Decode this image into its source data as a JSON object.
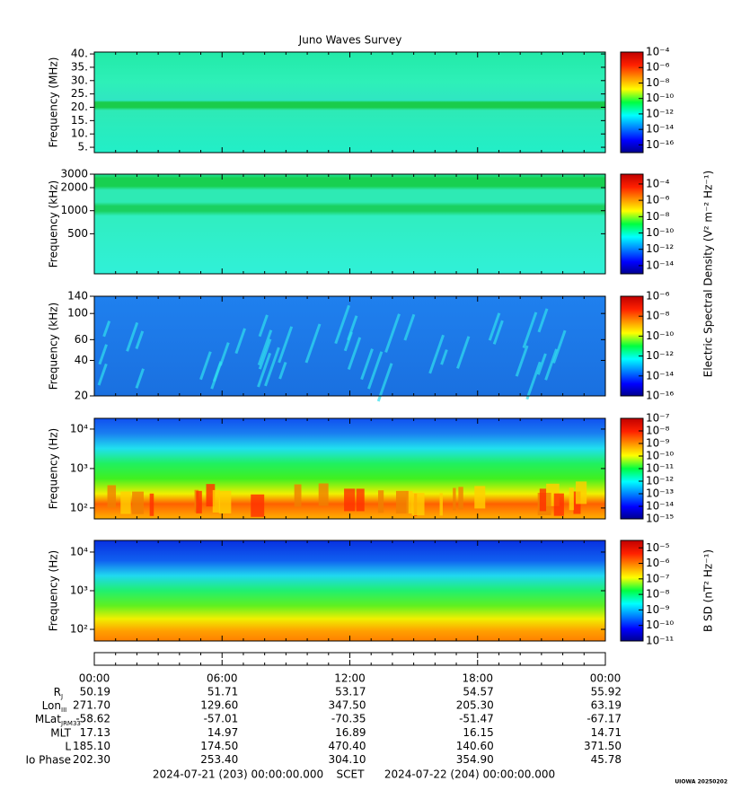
{
  "title": "Juno Waves Survey",
  "chart_data": [
    {
      "type": "spectrogram",
      "ylabel": "Frequency (MHz)",
      "log_y": false,
      "ylim": [
        3,
        40.7
      ],
      "yticks": [
        {
          "value": 5,
          "label": "5."
        },
        {
          "value": 10,
          "label": "10."
        },
        {
          "value": 15,
          "label": "15."
        },
        {
          "value": 20,
          "label": "20."
        },
        {
          "value": 25,
          "label": "25."
        },
        {
          "value": 30,
          "label": "30."
        },
        {
          "value": 35,
          "label": "35."
        },
        {
          "value": 40,
          "label": "40."
        }
      ],
      "colorbar": {
        "log": true,
        "clim": [
          1e-17,
          0.0001
        ],
        "ticks": [
          {
            "value": 0.0001,
            "label": "10⁻⁴"
          },
          {
            "value": 1e-06,
            "label": "10⁻⁶"
          },
          {
            "value": 1e-08,
            "label": "10⁻⁸"
          },
          {
            "value": 1e-10,
            "label": "10⁻¹⁰"
          },
          {
            "value": 1e-12,
            "label": "10⁻¹²"
          },
          {
            "value": 1e-14,
            "label": "10⁻¹⁴"
          },
          {
            "value": 1e-16,
            "label": "10⁻¹⁶"
          }
        ]
      }
    },
    {
      "type": "spectrogram",
      "ylabel": "Frequency (kHz)",
      "log_y": true,
      "ylim": [
        150,
        3000
      ],
      "yticks": [
        500,
        1000,
        2000,
        3000
      ],
      "colorbar": {
        "log": true,
        "clim": [
          1e-15,
          0.0016
        ],
        "label": "Electric Spectral Density (V² m⁻² Hz⁻¹)",
        "ticks": [
          {
            "value": 0.0001,
            "label": "10⁻⁴"
          },
          {
            "value": 1e-06,
            "label": "10⁻⁶"
          },
          {
            "value": 1e-08,
            "label": "10⁻⁸"
          },
          {
            "value": 1e-10,
            "label": "10⁻¹⁰"
          },
          {
            "value": 1e-12,
            "label": "10⁻¹²"
          },
          {
            "value": 1e-14,
            "label": "10⁻¹⁴"
          }
        ]
      }
    },
    {
      "type": "spectrogram",
      "ylabel": "Frequency (kHz)",
      "log_y": true,
      "ylim": [
        20,
        140
      ],
      "yticks": [
        20,
        40,
        60,
        100,
        140
      ],
      "colorbar": {
        "log": true,
        "clim": [
          1e-16,
          1e-06
        ],
        "ticks": [
          {
            "value": 1e-06,
            "label": "10⁻⁶"
          },
          {
            "value": 1e-08,
            "label": "10⁻⁸"
          },
          {
            "value": 1e-10,
            "label": "10⁻¹⁰"
          },
          {
            "value": 1e-12,
            "label": "10⁻¹²"
          },
          {
            "value": 1e-14,
            "label": "10⁻¹⁴"
          },
          {
            "value": 1e-16,
            "label": "10⁻¹⁶"
          }
        ]
      }
    },
    {
      "type": "spectrogram",
      "ylabel": "Frequency (Hz)",
      "log_y": true,
      "ylim": [
        53,
        18700
      ],
      "yticks": [
        {
          "value": 100,
          "label": "10²"
        },
        {
          "value": 1000,
          "label": "10³"
        },
        {
          "value": 10000,
          "label": "10⁴"
        }
      ],
      "colorbar": {
        "log": true,
        "clim": [
          1e-15,
          1e-07
        ],
        "ticks": [
          {
            "value": 1e-07,
            "label": "10⁻⁷"
          },
          {
            "value": 1e-08,
            "label": "10⁻⁸"
          },
          {
            "value": 1e-09,
            "label": "10⁻⁹"
          },
          {
            "value": 1e-10,
            "label": "10⁻¹⁰"
          },
          {
            "value": 1e-11,
            "label": "10⁻¹¹"
          },
          {
            "value": 1e-12,
            "label": "10⁻¹²"
          },
          {
            "value": 1e-13,
            "label": "10⁻¹³"
          },
          {
            "value": 1e-14,
            "label": "10⁻¹⁴"
          },
          {
            "value": 1e-15,
            "label": "10⁻¹⁵"
          }
        ]
      }
    },
    {
      "type": "spectrogram",
      "ylabel": "Frequency (Hz)",
      "log_y": true,
      "ylim": [
        50,
        20000
      ],
      "yticks": [
        {
          "value": 100,
          "label": "10²"
        },
        {
          "value": 1000,
          "label": "10³"
        },
        {
          "value": 10000,
          "label": "10⁴"
        }
      ],
      "colorbar": {
        "log": true,
        "clim": [
          1e-11,
          3e-05
        ],
        "label": "B SD (nT² Hz⁻¹)",
        "ticks": [
          {
            "value": 1e-05,
            "label": "10⁻⁵"
          },
          {
            "value": 1e-06,
            "label": "10⁻⁶"
          },
          {
            "value": 1e-07,
            "label": "10⁻⁷"
          },
          {
            "value": 1e-08,
            "label": "10⁻⁸"
          },
          {
            "value": 1e-09,
            "label": "10⁻⁹"
          },
          {
            "value": 1e-10,
            "label": "10⁻¹⁰"
          },
          {
            "value": 1e-11,
            "label": "10⁻¹¹"
          }
        ]
      }
    }
  ],
  "time_axis": {
    "ticks": [
      "00:00",
      "06:00",
      "12:00",
      "18:00",
      "00:00"
    ]
  },
  "ephemeris": {
    "rows": [
      {
        "label": "R",
        "sub": "J",
        "values": [
          "50.19",
          "51.71",
          "53.17",
          "54.57",
          "55.92"
        ]
      },
      {
        "label": "Lon",
        "sub": "III",
        "values": [
          "271.70",
          "129.60",
          "347.50",
          "205.30",
          "63.19"
        ]
      },
      {
        "label": "MLat",
        "sub": "JRM33",
        "values": [
          "-58.62",
          "-57.01",
          "-70.35",
          "-51.47",
          "-67.17"
        ]
      },
      {
        "label": "MLT",
        "values": [
          "17.13",
          "14.97",
          "16.89",
          "16.15",
          "14.71"
        ]
      },
      {
        "label": "L",
        "values": [
          "185.10",
          "174.50",
          "470.40",
          "140.60",
          "371.50"
        ]
      },
      {
        "label": "Io Phase",
        "values": [
          "202.30",
          "253.40",
          "304.10",
          "354.90",
          "45.78"
        ]
      }
    ]
  },
  "footer": {
    "start": "2024-07-21 (203) 00:00:00.000",
    "scale": "SCET",
    "end": "2024-07-22 (204) 00:00:00.000"
  },
  "credit": "UIOWA 20250202"
}
